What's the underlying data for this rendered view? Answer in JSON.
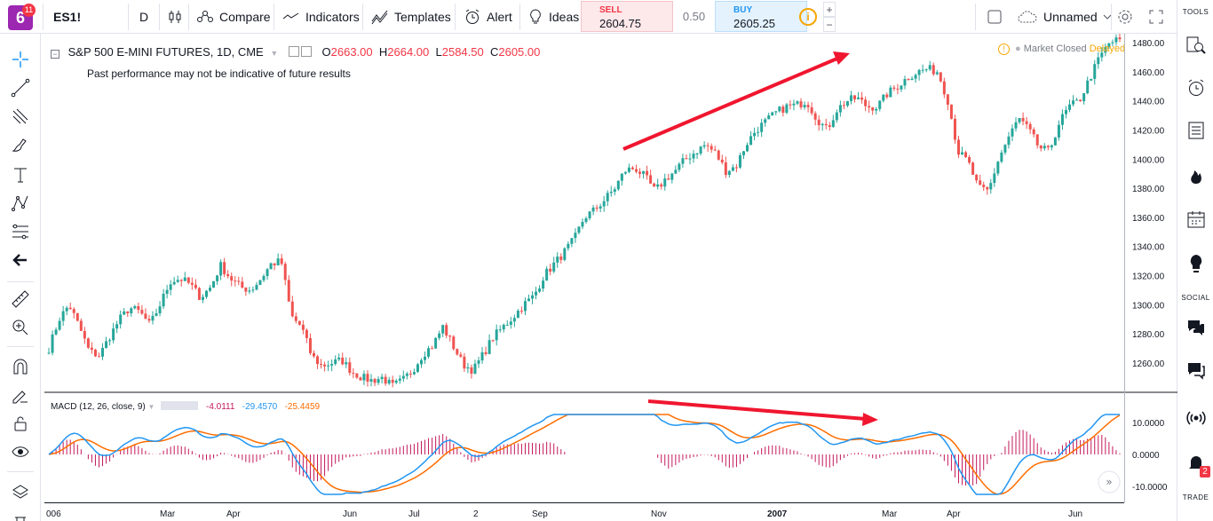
{
  "topbar": {
    "logo_text": "6",
    "logo_badge": "11",
    "symbol": "ES1!",
    "interval": "D",
    "compare": "Compare",
    "indicators": "Indicators",
    "templates": "Templates",
    "alert": "Alert",
    "ideas": "Ideas",
    "sell_label": "SELL",
    "sell_price": "2604.75",
    "spread": "0.50",
    "buy_label": "BUY",
    "buy_price": "2605.25",
    "plus": "+",
    "minus": "−",
    "layout_name": "Unnamed"
  },
  "legend": {
    "title": "S&P 500 E-MINI FUTURES, 1D, CME",
    "o_label": "O",
    "o_val": "2663.00",
    "h_label": "H",
    "h_val": "2664.00",
    "l_label": "L",
    "l_val": "2584.50",
    "c_label": "C",
    "c_val": "2605.00",
    "disclaimer": "Past performance may not be indicative of future results",
    "market_status": "Market Closed",
    "delayed": "Delayed"
  },
  "macd_legend": {
    "name": "MACD (12, 26, close, 9)",
    "hist": "-4.0111",
    "macd": "-29.4570",
    "signal": "-25.4459"
  },
  "price_axis": [
    "1480.00",
    "1460.00",
    "1440.00",
    "1420.00",
    "1400.00",
    "1380.00",
    "1360.00",
    "1340.00",
    "1320.00",
    "1300.00",
    "1280.00",
    "1260.00"
  ],
  "macd_axis": [
    "10.0000",
    "0.0000",
    "-10.0000"
  ],
  "time_axis": [
    "006",
    "Mar",
    "Apr",
    "Jun",
    "Jul",
    "2",
    "Sep",
    "Nov",
    "2007",
    "Mar",
    "Apr",
    "Jun"
  ],
  "right_sections": {
    "tools": "TOOLS",
    "social": "SOCIAL",
    "trade": "TRADE"
  },
  "right_badge": "2",
  "colors": {
    "up": "#26a69a",
    "down": "#ef5350",
    "macd": "#2196f3",
    "signal": "#ff6d00",
    "hist": "#c2185b",
    "arrow": "#f0162f",
    "accent": "#9c27b0"
  },
  "chart_data": {
    "type": "candlestick",
    "series": [
      {
        "name": "S&P 500 E-MINI FUTURES, 1D, CME",
        "close": [
          1270,
          1290,
          1300,
          1285,
          1268,
          1265,
          1278,
          1290,
          1298,
          1295,
          1286,
          1300,
          1316,
          1318,
          1314,
          1305,
          1312,
          1327,
          1318,
          1312,
          1310,
          1318,
          1328,
          1330,
          1292,
          1285,
          1265,
          1258,
          1260,
          1262,
          1254,
          1250,
          1248,
          1250,
          1244,
          1248,
          1255,
          1266,
          1272,
          1285,
          1272,
          1259,
          1255,
          1266,
          1278,
          1285,
          1292,
          1300,
          1306,
          1320,
          1328,
          1336,
          1345,
          1360,
          1365,
          1372,
          1380,
          1392,
          1394,
          1388,
          1378,
          1386,
          1392,
          1400,
          1405,
          1410,
          1404,
          1392,
          1395,
          1410,
          1420,
          1426,
          1432,
          1436,
          1437,
          1440,
          1428,
          1420,
          1434,
          1440,
          1442,
          1436,
          1436,
          1445,
          1450,
          1456,
          1460,
          1462,
          1460,
          1440,
          1405,
          1398,
          1380,
          1378,
          1400,
          1415,
          1428,
          1420,
          1408,
          1405,
          1425,
          1436,
          1440,
          1455,
          1470,
          1480,
          1482
        ],
        "ylim_price": [
          1240,
          1484
        ]
      },
      {
        "name": "MACD",
        "range": [
          -13,
          13
        ]
      }
    ]
  }
}
